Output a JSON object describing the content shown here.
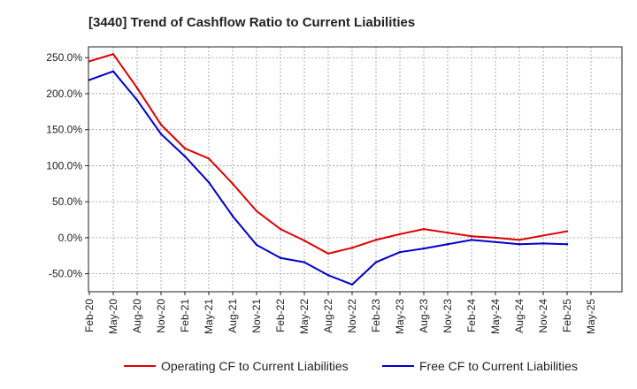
{
  "chart_data": {
    "type": "line",
    "title": "[3440]  Trend of Cashflow Ratio to Current Liabilities",
    "xlabel": "",
    "ylabel": "",
    "ylim": [
      -75,
      265
    ],
    "y_ticks": [
      -50,
      0,
      50,
      100,
      150,
      200,
      250
    ],
    "y_tick_labels": [
      "-50.0%",
      "0.0%",
      "50.0%",
      "100.0%",
      "150.0%",
      "200.0%",
      "250.0%"
    ],
    "x_tick_labels": [
      "Feb-20",
      "May-20",
      "Aug-20",
      "Nov-20",
      "Feb-21",
      "May-21",
      "Aug-21",
      "Nov-21",
      "Feb-22",
      "May-22",
      "Aug-22",
      "Nov-22",
      "Feb-23",
      "May-23",
      "Aug-23",
      "Nov-23",
      "Feb-24",
      "May-24",
      "Aug-24",
      "Nov-24",
      "Feb-25",
      "May-25"
    ],
    "grid": true,
    "legend_position": "bottom",
    "categories": [
      "Feb-20",
      "May-20",
      "Aug-20",
      "Nov-20",
      "Feb-21",
      "May-21",
      "Aug-21",
      "Nov-21",
      "Feb-22",
      "May-22",
      "Aug-22",
      "Nov-22",
      "Feb-23",
      "May-23",
      "Aug-23",
      "Nov-23",
      "Feb-24",
      "May-24",
      "Aug-24",
      "Nov-24",
      "Feb-25"
    ],
    "series": [
      {
        "name": "Operating CF to Current Liabilities",
        "color": "#dd0000",
        "values": [
          245,
          255,
          208,
          157,
          124,
          110,
          75,
          37,
          12,
          -4,
          -22,
          -14,
          -3,
          5,
          12,
          7,
          2,
          0,
          -3,
          3,
          9
        ]
      },
      {
        "name": "Free CF to Current Liabilities",
        "color": "#0000cc",
        "values": [
          219,
          231,
          191,
          144,
          113,
          77,
          30,
          -10,
          -28,
          -34,
          -52,
          -65,
          -34,
          -20,
          -15,
          -9,
          -3,
          -6,
          -9,
          -8,
          -9
        ]
      }
    ]
  }
}
